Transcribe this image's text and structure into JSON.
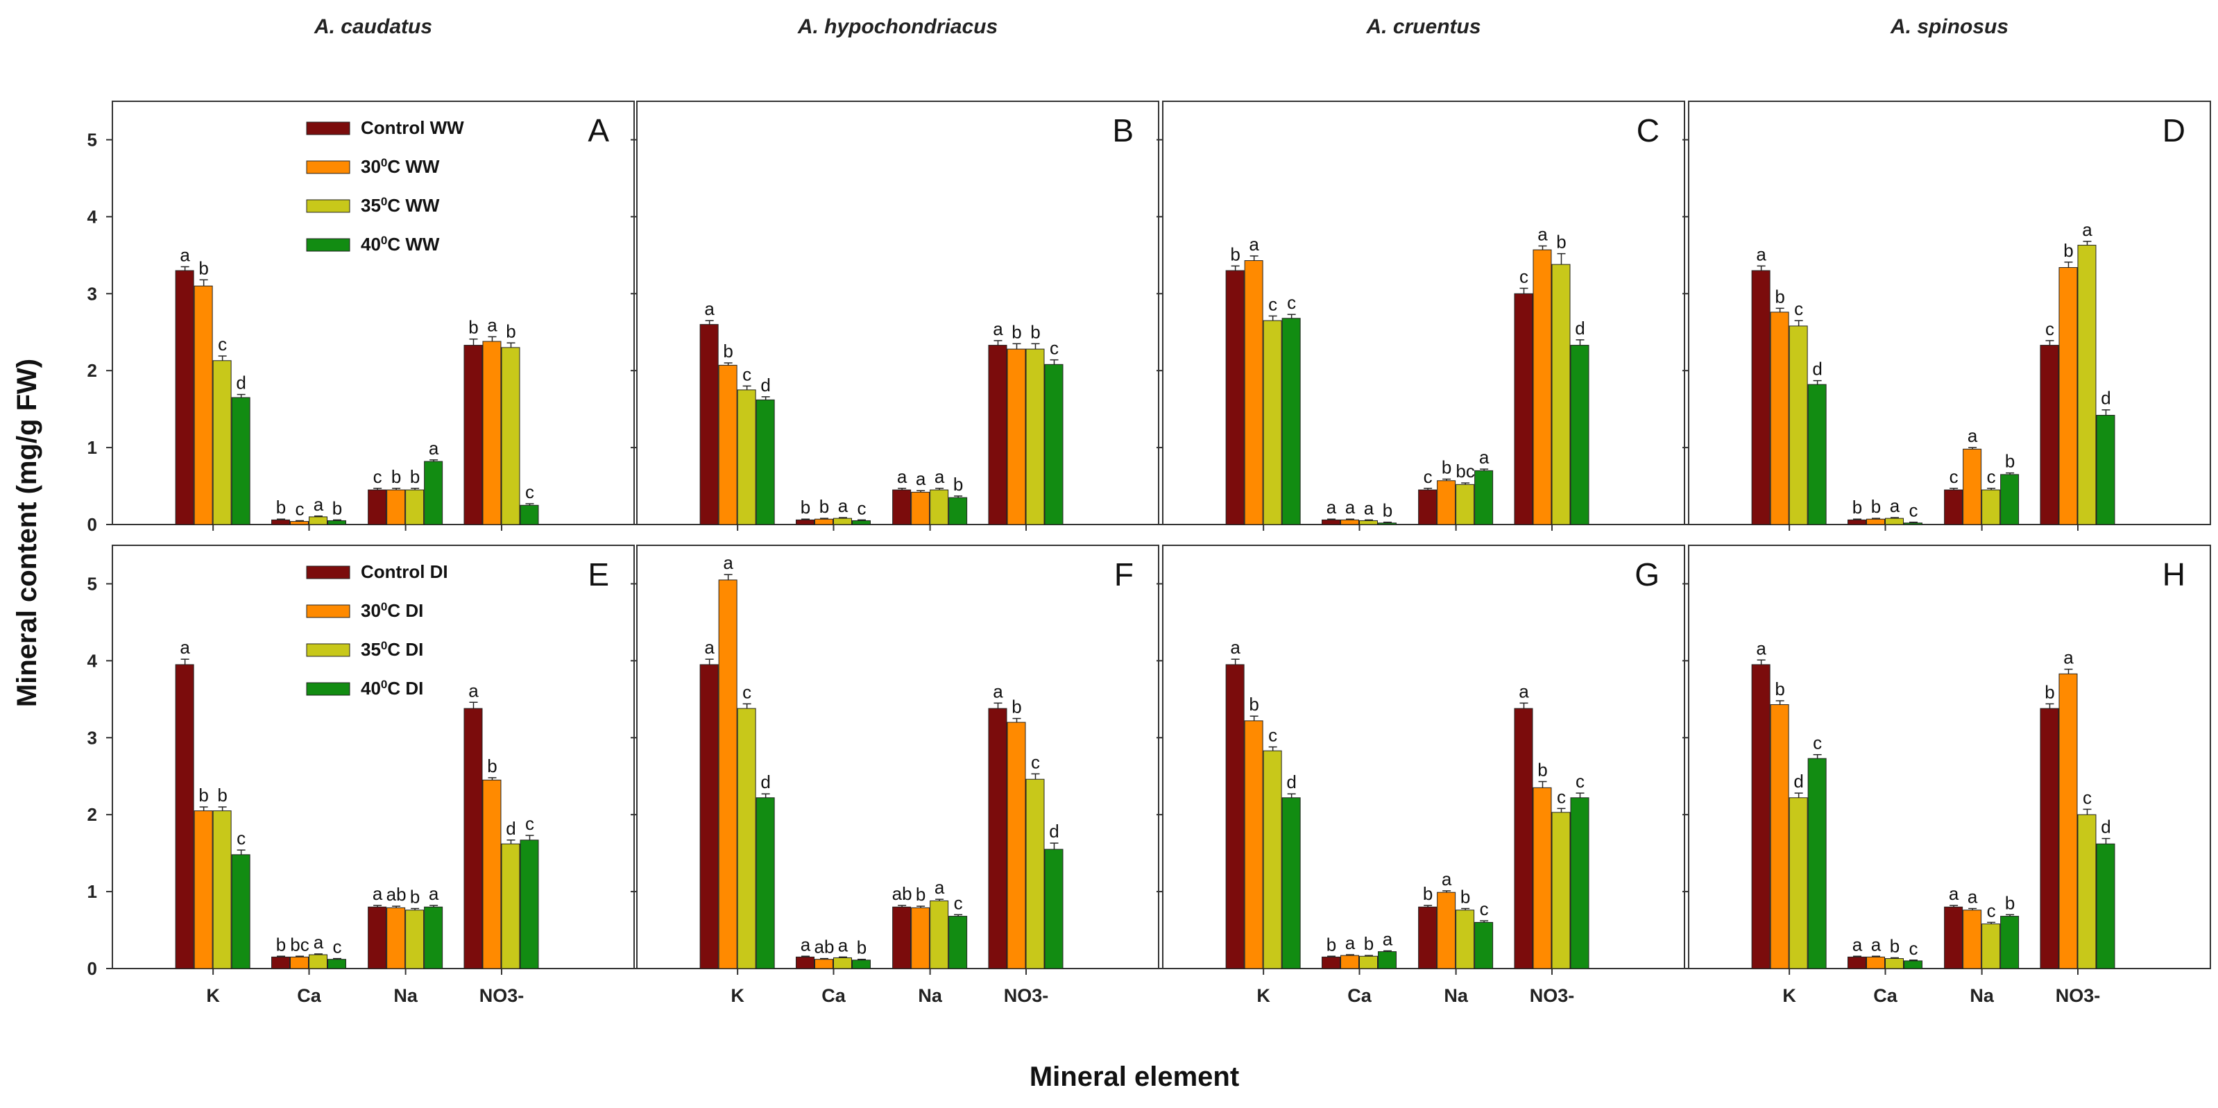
{
  "figure": {
    "ylabel": "Mineral content (mg/g FW)",
    "xlabel": "Mineral element",
    "species": [
      "A. caudatus",
      "A. hypochondriacus",
      "A. cruentus",
      "A. spinosus"
    ]
  },
  "chart_data": {
    "type": "bar",
    "categories": [
      "K",
      "Ca",
      "Na",
      "NO3-"
    ],
    "ylim": [
      0,
      5.5
    ],
    "yticks": [
      "0",
      "1",
      "2",
      "3",
      "4",
      "5"
    ],
    "colors": [
      "#7b0c0c",
      "#ff8a00",
      "#c8c81a",
      "#128c12"
    ],
    "legends": {
      "WW": [
        {
          "name": "Control WW",
          "pre": "Control WW",
          "sup": "",
          "post": ""
        },
        {
          "name": "30⁰C WW",
          "pre": "30",
          "sup": "0",
          "post": "C WW"
        },
        {
          "name": "35⁰C WW",
          "pre": "35",
          "sup": "0",
          "post": "C WW"
        },
        {
          "name": "40⁰C WW",
          "pre": "40",
          "sup": "0",
          "post": "C WW"
        }
      ],
      "DI": [
        {
          "name": "Control DI",
          "pre": "Control DI",
          "sup": "",
          "post": ""
        },
        {
          "name": "30⁰C DI",
          "pre": "30",
          "sup": "0",
          "post": "C DI"
        },
        {
          "name": "35⁰C DI",
          "pre": "35",
          "sup": "0",
          "post": "C DI"
        },
        {
          "name": "40⁰C DI",
          "pre": "40",
          "sup": "0",
          "post": "C DI"
        }
      ]
    },
    "panels": [
      {
        "letter": "A",
        "values": [
          [
            3.3,
            3.1,
            2.13,
            1.65
          ],
          [
            0.06,
            0.04,
            0.1,
            0.05
          ],
          [
            0.45,
            0.45,
            0.45,
            0.82
          ],
          [
            2.33,
            2.38,
            2.3,
            0.25
          ]
        ],
        "errors": [
          [
            0.05,
            0.08,
            0.06,
            0.04
          ],
          [
            0.01,
            0.01,
            0.01,
            0.01
          ],
          [
            0.02,
            0.02,
            0.02,
            0.02
          ],
          [
            0.08,
            0.06,
            0.06,
            0.02
          ]
        ],
        "sig": [
          [
            "a",
            "b",
            "c",
            "d"
          ],
          [
            "b",
            "c",
            "a",
            "b"
          ],
          [
            "c",
            "b",
            "b",
            "a"
          ],
          [
            "b",
            "a",
            "b",
            "c"
          ]
        ]
      },
      {
        "letter": "B",
        "values": [
          [
            2.6,
            2.07,
            1.75,
            1.62
          ],
          [
            0.06,
            0.07,
            0.08,
            0.05
          ],
          [
            0.45,
            0.42,
            0.45,
            0.35
          ],
          [
            2.33,
            2.28,
            2.28,
            2.08
          ]
        ],
        "errors": [
          [
            0.05,
            0.03,
            0.05,
            0.04
          ],
          [
            0.01,
            0.01,
            0.01,
            0.01
          ],
          [
            0.02,
            0.02,
            0.02,
            0.02
          ],
          [
            0.06,
            0.07,
            0.07,
            0.06
          ]
        ],
        "sig": [
          [
            "a",
            "b",
            "c",
            "d"
          ],
          [
            "b",
            "b",
            "a",
            "c"
          ],
          [
            "a",
            "a",
            "a",
            "b"
          ],
          [
            "a",
            "b",
            "b",
            "c"
          ]
        ]
      },
      {
        "letter": "C",
        "values": [
          [
            3.3,
            3.43,
            2.65,
            2.68
          ],
          [
            0.06,
            0.06,
            0.05,
            0.02
          ],
          [
            0.45,
            0.57,
            0.52,
            0.7
          ],
          [
            3.0,
            3.57,
            3.38,
            2.33
          ]
        ],
        "errors": [
          [
            0.06,
            0.06,
            0.06,
            0.05
          ],
          [
            0.01,
            0.01,
            0.01,
            0.01
          ],
          [
            0.02,
            0.02,
            0.02,
            0.02
          ],
          [
            0.07,
            0.05,
            0.14,
            0.07
          ]
        ],
        "sig": [
          [
            "b",
            "a",
            "c",
            "c"
          ],
          [
            "a",
            "a",
            "a",
            "b"
          ],
          [
            "c",
            "b",
            "bc",
            "a"
          ],
          [
            "c",
            "a",
            "b",
            "d"
          ]
        ]
      },
      {
        "letter": "D",
        "values": [
          [
            3.3,
            2.76,
            2.58,
            1.82
          ],
          [
            0.06,
            0.07,
            0.08,
            0.02
          ],
          [
            0.45,
            0.98,
            0.45,
            0.65
          ],
          [
            2.33,
            3.34,
            3.63,
            1.42
          ]
        ],
        "errors": [
          [
            0.06,
            0.05,
            0.07,
            0.05
          ],
          [
            0.01,
            0.01,
            0.01,
            0.01
          ],
          [
            0.02,
            0.02,
            0.02,
            0.02
          ],
          [
            0.06,
            0.07,
            0.05,
            0.07
          ]
        ],
        "sig": [
          [
            "a",
            "b",
            "c",
            "d"
          ],
          [
            "b",
            "b",
            "a",
            "c"
          ],
          [
            "c",
            "a",
            "c",
            "b"
          ],
          [
            "c",
            "b",
            "a",
            "d"
          ]
        ]
      },
      {
        "letter": "E",
        "values": [
          [
            3.95,
            2.05,
            2.05,
            1.48
          ],
          [
            0.15,
            0.15,
            0.18,
            0.12
          ],
          [
            0.8,
            0.79,
            0.76,
            0.8
          ],
          [
            3.38,
            2.45,
            1.62,
            1.67
          ]
        ],
        "errors": [
          [
            0.07,
            0.05,
            0.05,
            0.06
          ],
          [
            0.01,
            0.01,
            0.01,
            0.01
          ],
          [
            0.02,
            0.02,
            0.02,
            0.02
          ],
          [
            0.08,
            0.03,
            0.05,
            0.06
          ]
        ],
        "sig": [
          [
            "a",
            "b",
            "b",
            "c"
          ],
          [
            "b",
            "bc",
            "a",
            "c"
          ],
          [
            "a",
            "ab",
            "b",
            "a"
          ],
          [
            "a",
            "b",
            "d",
            "c"
          ]
        ]
      },
      {
        "letter": "F",
        "values": [
          [
            3.95,
            5.05,
            3.38,
            2.22
          ],
          [
            0.15,
            0.12,
            0.14,
            0.11
          ],
          [
            0.8,
            0.79,
            0.88,
            0.68
          ],
          [
            3.38,
            3.2,
            2.46,
            1.55
          ]
        ],
        "errors": [
          [
            0.07,
            0.07,
            0.06,
            0.05
          ],
          [
            0.01,
            0.01,
            0.01,
            0.01
          ],
          [
            0.02,
            0.02,
            0.02,
            0.02
          ],
          [
            0.07,
            0.05,
            0.07,
            0.08
          ]
        ],
        "sig": [
          [
            "a",
            "a",
            "c",
            "d"
          ],
          [
            "a",
            "ab",
            "a",
            "b"
          ],
          [
            "ab",
            "b",
            "a",
            "c"
          ],
          [
            "a",
            "b",
            "c",
            "d"
          ]
        ]
      },
      {
        "letter": "G",
        "values": [
          [
            3.95,
            3.22,
            2.83,
            2.22
          ],
          [
            0.15,
            0.17,
            0.16,
            0.22
          ],
          [
            0.8,
            0.99,
            0.76,
            0.6
          ],
          [
            3.38,
            2.35,
            2.03,
            2.22
          ]
        ],
        "errors": [
          [
            0.07,
            0.06,
            0.05,
            0.05
          ],
          [
            0.01,
            0.01,
            0.01,
            0.01
          ],
          [
            0.02,
            0.02,
            0.02,
            0.02
          ],
          [
            0.07,
            0.08,
            0.05,
            0.06
          ]
        ],
        "sig": [
          [
            "a",
            "b",
            "c",
            "d"
          ],
          [
            "b",
            "a",
            "b",
            "a"
          ],
          [
            "b",
            "a",
            "b",
            "c"
          ],
          [
            "a",
            "b",
            "c",
            "c"
          ]
        ]
      },
      {
        "letter": "H",
        "values": [
          [
            3.95,
            3.43,
            2.22,
            2.73
          ],
          [
            0.15,
            0.15,
            0.13,
            0.1
          ],
          [
            0.8,
            0.76,
            0.58,
            0.68
          ],
          [
            3.38,
            3.83,
            2.0,
            1.62
          ]
        ],
        "errors": [
          [
            0.06,
            0.05,
            0.06,
            0.05
          ],
          [
            0.01,
            0.01,
            0.01,
            0.01
          ],
          [
            0.02,
            0.02,
            0.02,
            0.02
          ],
          [
            0.06,
            0.06,
            0.07,
            0.07
          ]
        ],
        "sig": [
          [
            "a",
            "b",
            "d",
            "c"
          ],
          [
            "a",
            "a",
            "b",
            "c"
          ],
          [
            "a",
            "a",
            "c",
            "b"
          ],
          [
            "b",
            "a",
            "c",
            "d"
          ]
        ]
      }
    ]
  }
}
